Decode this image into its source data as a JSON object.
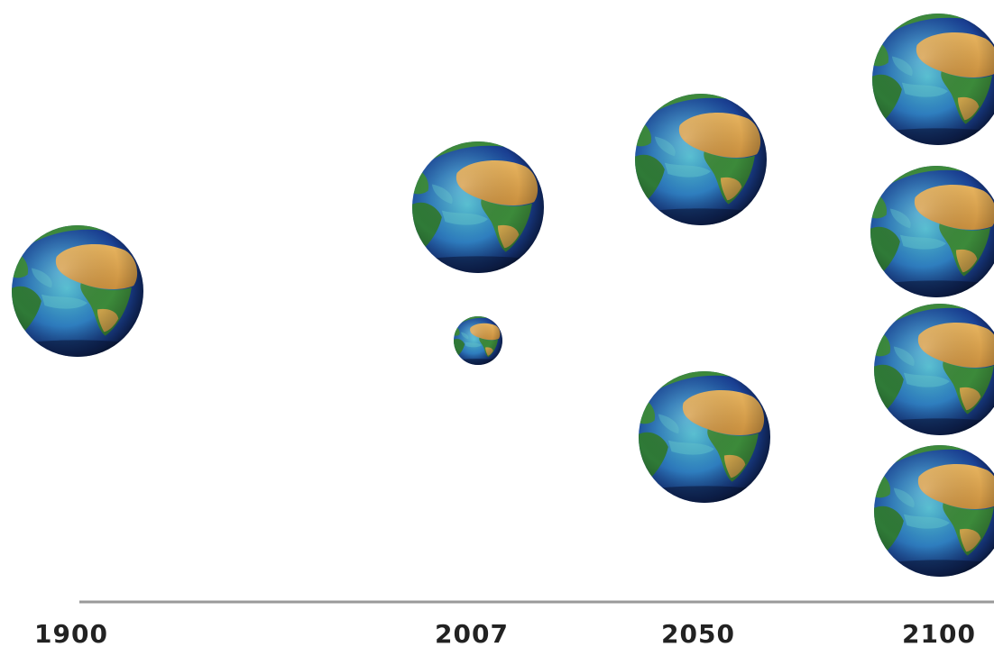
{
  "timeline": {
    "years": [
      "1900",
      "2007",
      "2050",
      "2100"
    ],
    "icon": "earth-globe-icon",
    "globe_counts": {
      "1900": 1,
      "2007": 1.15,
      "2050": 2,
      "2100": 4
    }
  },
  "colors": {
    "axis_line": "#9a9a9a",
    "label_text": "#222222",
    "ocean_deep": "#1c3f8f",
    "ocean_shallow": "#3fa3c8",
    "land_green": "#3c8a3a",
    "land_desert": "#d9a552"
  }
}
